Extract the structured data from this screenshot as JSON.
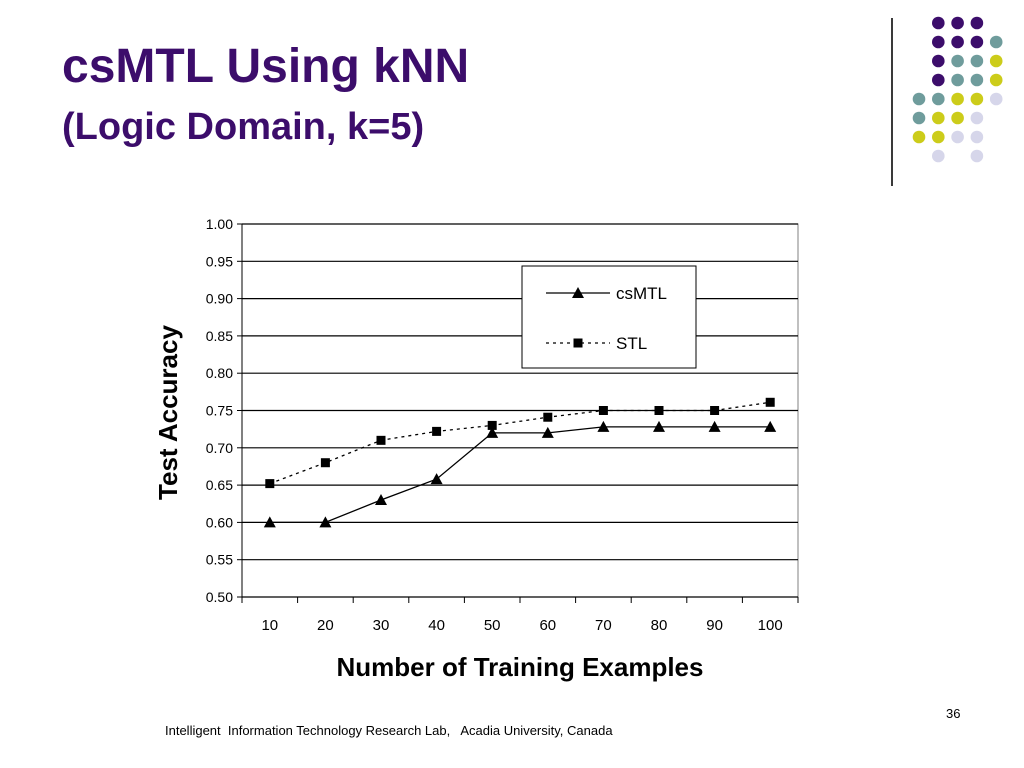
{
  "slide": {
    "title": "csMTL Using kNN",
    "subtitle": "(Logic Domain, k=5)",
    "page_number": "36",
    "footer": "Intelligent  Information Technology Research Lab,   Acadia University, Canada"
  },
  "decoration": {
    "colors": {
      "purple": "#3c0d6b",
      "teal": "#6f9c9c",
      "yellow": "#cccc1a",
      "lavender": "#d6d6ea"
    },
    "dot_grid": [
      [
        null,
        "purple",
        "purple",
        "purple"
      ],
      [
        null,
        "purple",
        "purple",
        "purple",
        "teal"
      ],
      [
        null,
        "purple",
        "teal",
        "teal",
        "yellow"
      ],
      [
        null,
        "purple",
        "teal",
        "teal",
        "yellow"
      ],
      [
        "teal",
        "teal",
        "yellow",
        "yellow",
        "lavender"
      ],
      [
        "teal",
        "yellow",
        "yellow",
        "lavender"
      ],
      [
        "yellow",
        "yellow",
        "lavender",
        "lavender"
      ],
      [
        null,
        "lavender",
        null,
        "lavender"
      ]
    ]
  },
  "chart_data": {
    "type": "line",
    "title": "",
    "xlabel": "Number of Training Examples",
    "ylabel": "Test Accuracy",
    "categories": [
      "10",
      "20",
      "30",
      "40",
      "50",
      "60",
      "70",
      "80",
      "90",
      "100"
    ],
    "ylim": [
      0.5,
      1.0
    ],
    "ytick_labels": [
      "0.50",
      "0.55",
      "0.60",
      "0.65",
      "0.70",
      "0.75",
      "0.80",
      "0.85",
      "0.90",
      "0.95",
      "1.00"
    ],
    "grid": "horizontal",
    "legend_position": "top-right",
    "series": [
      {
        "name": "csMTL",
        "marker": "triangle",
        "line_style": "solid",
        "color": "#000000",
        "values": [
          0.6,
          0.6,
          0.63,
          0.658,
          0.72,
          0.72,
          0.728,
          0.728,
          0.728,
          0.728
        ]
      },
      {
        "name": "STL",
        "marker": "square",
        "line_style": "dotted",
        "color": "#000000",
        "values": [
          0.652,
          0.68,
          0.71,
          0.722,
          0.73,
          0.741,
          0.75,
          0.75,
          0.75,
          0.761
        ]
      }
    ]
  }
}
